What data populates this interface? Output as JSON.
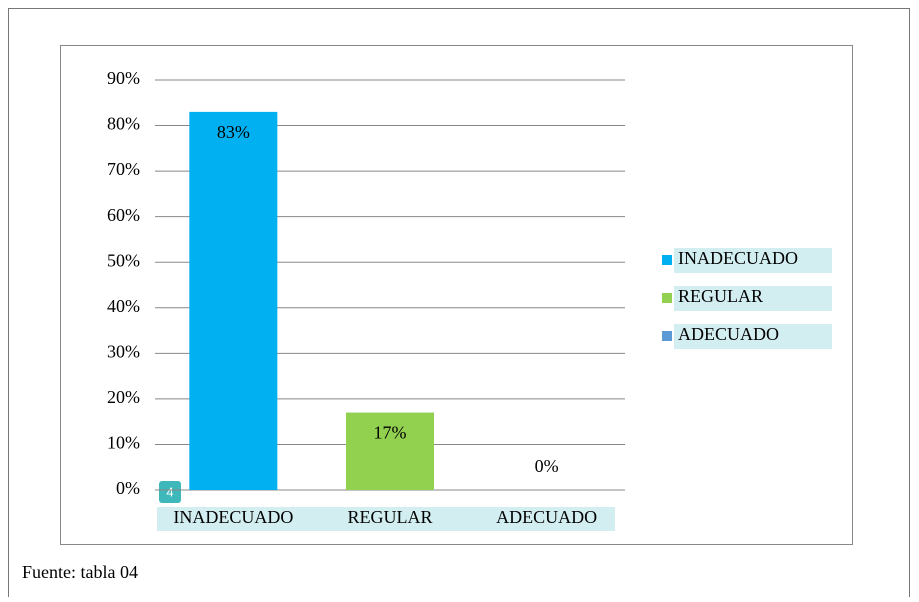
{
  "chart_data": {
    "type": "bar",
    "categories": [
      "INADECUADO",
      "REGULAR",
      "ADECUADO"
    ],
    "values": [
      83,
      17,
      0
    ],
    "value_labels": [
      "83%",
      "17%",
      "0%"
    ],
    "colors": [
      "#00b0f0",
      "#92d050",
      "#5b9bd5"
    ],
    "ylim": [
      0,
      90
    ],
    "yticks": [
      {
        "value": 0,
        "label": "0%"
      },
      {
        "value": 10,
        "label": "10%"
      },
      {
        "value": 20,
        "label": "20%"
      },
      {
        "value": 30,
        "label": "30%"
      },
      {
        "value": 40,
        "label": "40%"
      },
      {
        "value": 50,
        "label": "50%"
      },
      {
        "value": 60,
        "label": "60%"
      },
      {
        "value": 70,
        "label": "70%"
      },
      {
        "value": 80,
        "label": "80%"
      },
      {
        "value": 90,
        "label": "90%"
      }
    ],
    "grid": true,
    "legend": "right"
  },
  "marker": "4",
  "source": "Fuente: tabla 04"
}
